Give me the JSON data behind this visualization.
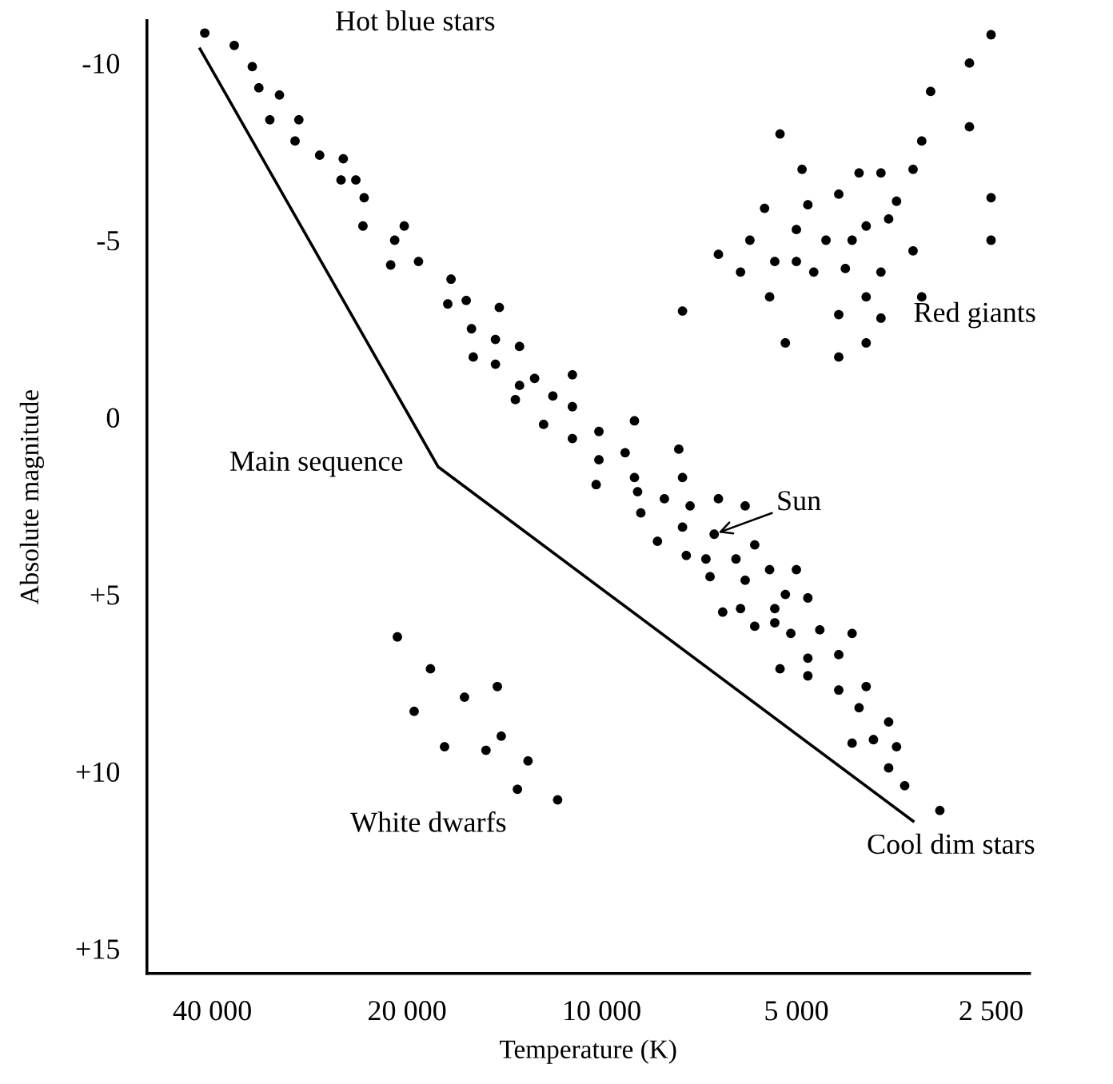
{
  "chart_data": {
    "type": "scatter",
    "xlabel": "Temperature (K)",
    "ylabel": "Absolute magnitude",
    "log": "x",
    "xlim": [
      50500,
      2180
    ],
    "ylim": [
      15.7,
      -11.2
    ],
    "xticks": [
      {
        "value": 40000,
        "label": "40 000"
      },
      {
        "value": 20000,
        "label": "20 000"
      },
      {
        "value": 10000,
        "label": "10 000"
      },
      {
        "value": 5000,
        "label": "5 000"
      },
      {
        "value": 2500,
        "label": "2 500"
      }
    ],
    "yticks": [
      {
        "value": -10,
        "label": "-10"
      },
      {
        "value": -5,
        "label": "-5"
      },
      0,
      {
        "value": 5,
        "label": "+5"
      },
      {
        "value": 10,
        "label": "+10"
      },
      {
        "value": 15,
        "label": "+15"
      }
    ],
    "grid": false,
    "marker": "circle",
    "series": [
      {
        "color": "#000000",
        "x": [
          41100,
          37000,
          34700,
          33900,
          31500,
          32600,
          29400,
          29800,
          27300,
          25100,
          25300,
          24000,
          23300,
          23400,
          20200,
          20900,
          21200,
          19200,
          17100,
          17300,
          16200,
          14400,
          15900,
          14600,
          13400,
          15800,
          14600,
          12700,
          13400,
          13600,
          11900,
          12300,
          11100,
          11100,
          11100,
          10100,
          8900,
          10100,
          9200,
          7600,
          10200,
          8900,
          7500,
          8800,
          8000,
          7300,
          6600,
          6000,
          8700,
          7500,
          6700,
          8200,
          5800,
          7400,
          6900,
          6200,
          6800,
          6000,
          5500,
          5000,
          5200,
          4800,
          6500,
          6100,
          5400,
          5800,
          5400,
          5100,
          4600,
          4100,
          5300,
          4800,
          4300,
          4800,
          4300,
          3900,
          4000,
          3600,
          4100,
          3800,
          3500,
          3600,
          3400,
          3000,
          2500,
          2700,
          3100,
          5300,
          2700,
          3200,
          4900,
          4000,
          3700,
          3300,
          5600,
          4800,
          4300,
          3500,
          2500,
          5000,
          3900,
          3600,
          5900,
          4500,
          4100,
          2500,
          6600,
          5400,
          5000,
          3300,
          6100,
          4700,
          4200,
          3700,
          5500,
          3900,
          3200,
          7500,
          4300,
          3700,
          5200,
          3900,
          4300,
          20700,
          18400,
          14500,
          16300,
          19500,
          14300,
          17500,
          15100,
          13000,
          13500,
          11700
        ],
        "values": [
          -10.85,
          -10.5,
          -9.9,
          -9.3,
          -9.1,
          -8.4,
          -8.4,
          -7.8,
          -7.4,
          -7.3,
          -6.7,
          -6.7,
          -6.2,
          -5.4,
          -5.4,
          -5.0,
          -4.3,
          -4.4,
          -3.9,
          -3.2,
          -3.3,
          -3.1,
          -2.5,
          -2.2,
          -2.0,
          -1.7,
          -1.5,
          -1.1,
          -0.9,
          -0.5,
          -0.6,
          0.2,
          -1.2,
          -0.3,
          0.6,
          0.4,
          0.1,
          1.2,
          1.0,
          0.9,
          1.9,
          1.7,
          1.7,
          2.1,
          2.3,
          2.5,
          2.3,
          2.5,
          2.7,
          3.1,
          3.3,
          3.5,
          3.6,
          3.9,
          4.0,
          4.0,
          4.5,
          4.6,
          4.3,
          4.3,
          5.0,
          5.1,
          5.5,
          5.4,
          5.4,
          5.9,
          5.8,
          6.1,
          6.0,
          6.1,
          7.1,
          6.8,
          6.7,
          7.3,
          7.7,
          7.6,
          8.2,
          8.6,
          9.2,
          9.1,
          9.3,
          9.9,
          10.4,
          11.1,
          -10.8,
          -10.0,
          -9.2,
          -8.0,
          -8.2,
          -7.8,
          -7.0,
          -6.9,
          -6.9,
          -7.0,
          -5.9,
          -6.0,
          -6.3,
          -6.1,
          -6.2,
          -5.3,
          -5.4,
          -5.6,
          -5.0,
          -5.0,
          -5.0,
          -5.0,
          -4.6,
          -4.4,
          -4.4,
          -4.7,
          -4.1,
          -4.1,
          -4.2,
          -4.1,
          -3.4,
          -3.4,
          -3.4,
          -3.0,
          -2.9,
          -2.8,
          -2.1,
          -2.1,
          -1.7,
          6.2,
          7.1,
          7.6,
          7.9,
          8.3,
          9.0,
          9.3,
          9.4,
          9.7,
          10.5,
          10.8
        ]
      },
      {
        "type": "line",
        "color": "#000000",
        "marker": "none",
        "line_style": "solid",
        "x": [
          41800,
          17900,
          3300
        ],
        "values": [
          -10.4,
          1.4,
          11.4
        ]
      }
    ],
    "annotations": [
      "Hot blue stars",
      "Red giants",
      "Main sequence",
      {
        "text": "Sun",
        "x": 6700,
        "y": 3.3
      },
      "White dwarfs",
      "Cool dim stars"
    ]
  }
}
